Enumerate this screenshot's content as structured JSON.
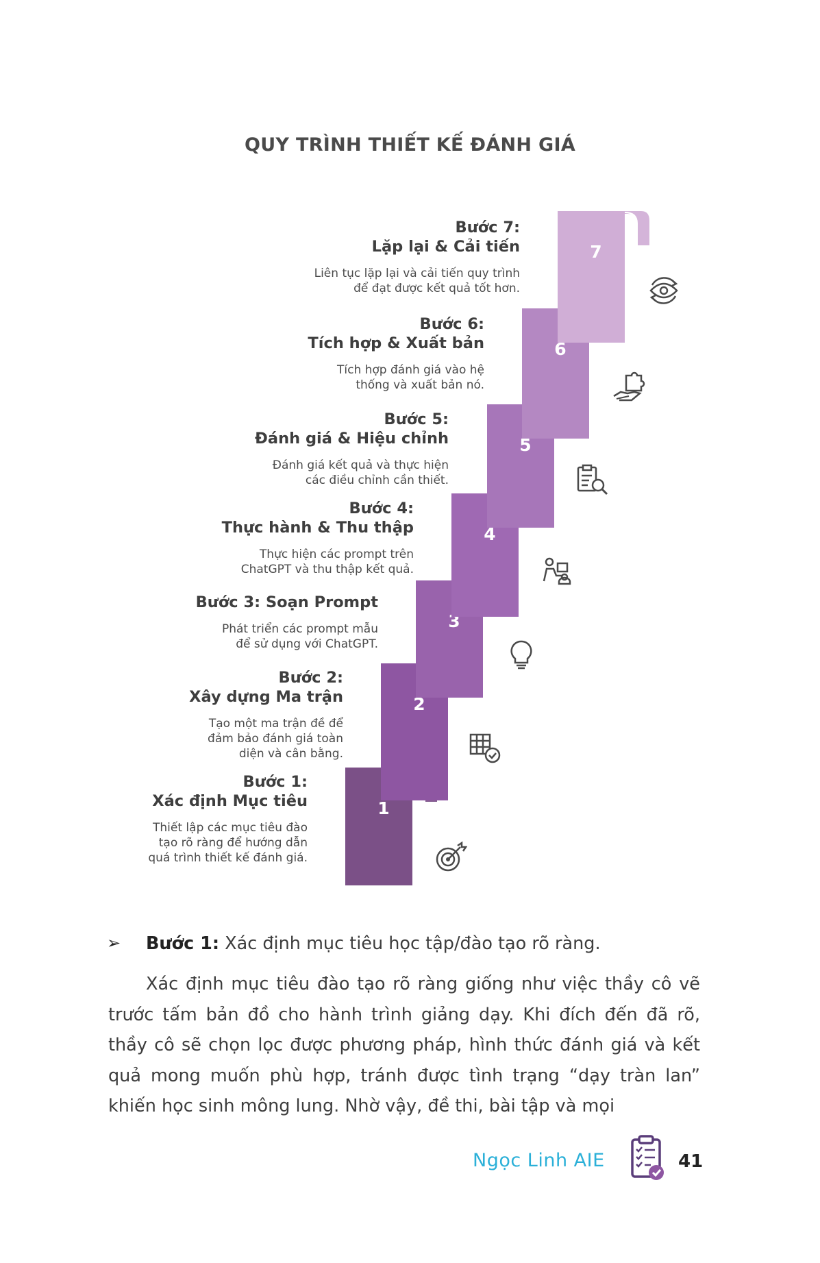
{
  "title": "QUY TRÌNH THIẾT KẾ ĐÁNH GIÁ",
  "colors": {
    "step1": "#7b5087",
    "step2": "#8e56a2",
    "step3": "#9963ac",
    "step4": "#9f69b3",
    "step5": "#a776b9",
    "step6": "#b488c2",
    "step7": "#d0aed6",
    "accent": "#2bb0d8",
    "icon": "#4a4a4a"
  },
  "steps": [
    {
      "number": "1",
      "heading_line1": "Bước 1:",
      "heading_line2": "Xác định Mục tiêu",
      "desc_lines": [
        "Thiết lập các mục tiêu đào",
        "tạo rõ ràng để hướng dẫn",
        "quá trình thiết kế đánh giá."
      ],
      "icon": "target-icon"
    },
    {
      "number": "2",
      "heading_line1": "Bước 2:",
      "heading_line2": "Xây dựng Ma trận",
      "desc_lines": [
        "Tạo một ma trận đề để",
        "đảm bảo đánh giá toàn",
        "diện và cân bằng."
      ],
      "icon": "grid-check-icon"
    },
    {
      "number": "3",
      "heading_line1": "Bước 3: Soạn Prompt",
      "heading_line2": "",
      "desc_lines": [
        "Phát triển các prompt mẫu",
        "để sử dụng với ChatGPT."
      ],
      "icon": "lightbulb-icon"
    },
    {
      "number": "4",
      "heading_line1": "Bước 4:",
      "heading_line2": "Thực hành & Thu thập",
      "desc_lines": [
        "Thực hiện các prompt trên",
        "ChatGPT và thu thập kết quả."
      ],
      "icon": "practice-icon"
    },
    {
      "number": "5",
      "heading_line1": "Bước 5:",
      "heading_line2": "Đánh giá & Hiệu chỉnh",
      "desc_lines": [
        "Đánh giá kết quả và thực hiện",
        "các điều chỉnh cần thiết."
      ],
      "icon": "clipboard-search-icon"
    },
    {
      "number": "6",
      "heading_line1": "Bước 6:",
      "heading_line2": "Tích hợp & Xuất bản",
      "desc_lines": [
        "Tích hợp đánh giá vào hệ",
        "thống và xuất bản nó."
      ],
      "icon": "puzzle-hand-icon"
    },
    {
      "number": "7",
      "heading_line1": "Bước 7:",
      "heading_line2": "Lặp lại & Cải tiến",
      "desc_lines": [
        "Liên tục lặp lại và cải tiến quy trình",
        "để đạt được kết quả tốt hơn."
      ],
      "icon": "eye-cycle-icon"
    }
  ],
  "bullet": {
    "marker": "➢",
    "bold": "Bước 1:",
    "text": " Xác định mục tiêu học tập/đào tạo rõ ràng."
  },
  "paragraph": "Xác định mục tiêu đào tạo rõ ràng giống như việc thầy cô vẽ trước tấm bản đồ cho hành trình giảng dạy. Khi đích đến đã rõ, thầy cô sẽ chọn lọc được phương pháp, hình thức đánh giá và kết quả mong muốn phù hợp, tránh được tình trạng “dạy tràn lan” khiến học sinh mông lung. Nhờ vậy, đề thi, bài tập và mọi",
  "footer": {
    "brand": "Ngọc Linh AIE",
    "page_number": "41",
    "icon": "checklist-icon"
  }
}
